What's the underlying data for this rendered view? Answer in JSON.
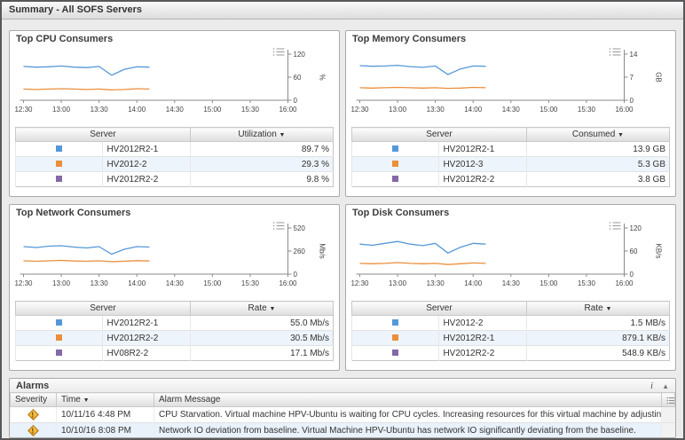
{
  "page_title": "Summary - All SOFS Servers",
  "icons": {
    "sort": "▼",
    "info": "i",
    "collapse": "▲",
    "chart_options": "menu-lines",
    "warning": "!"
  },
  "colors": {
    "series": [
      "#5598d8",
      "#ea8f3c",
      "#8468a8"
    ],
    "axis": "#8a8a8a",
    "warning_icon": "#ef9d1e"
  },
  "table_headers": {
    "server": "Server"
  },
  "panels": [
    {
      "title": "Top CPU Consumers",
      "value_header": "Utilization",
      "rows": [
        [
          "HV2012R2-1",
          "89.7 %"
        ],
        [
          "HV2012-2",
          "29.3 %"
        ],
        [
          "HV2012R2-2",
          "9.8 %"
        ]
      ]
    },
    {
      "title": "Top Memory Consumers",
      "value_header": "Consumed",
      "rows": [
        [
          "HV2012R2-1",
          "13.9 GB"
        ],
        [
          "HV2012-3",
          "5.3 GB"
        ],
        [
          "HV2012R2-2",
          "3.8 GB"
        ]
      ]
    },
    {
      "title": "Top Network Consumers",
      "value_header": "Rate",
      "rows": [
        [
          "HV2012R2-1",
          "55.0 Mb/s"
        ],
        [
          "HV2012R2-2",
          "30.5 Mb/s"
        ],
        [
          "HV08R2-2",
          "17.1 Mb/s"
        ]
      ]
    },
    {
      "title": "Top Disk Consumers",
      "value_header": "Rate",
      "rows": [
        [
          "HV2012-2",
          "1.5 MB/s"
        ],
        [
          "HV2012R2-1",
          "879.1 KB/s"
        ],
        [
          "HV2012R2-2",
          "548.9 KB/s"
        ]
      ]
    }
  ],
  "chart_data": [
    {
      "type": "line",
      "title": "Top CPU Consumers",
      "ylabel": "%",
      "ylim": [
        0,
        120
      ],
      "y_ticks": [
        0,
        60,
        120
      ],
      "x_ticks": [
        "12:30",
        "13:00",
        "13:30",
        "14:00",
        "14:30",
        "15:00",
        "15:30",
        "16:00"
      ],
      "x_minutes": [
        0,
        10,
        20,
        30,
        40,
        50,
        60,
        70,
        80,
        90,
        100
      ],
      "x_span": 210,
      "series": [
        {
          "name": "HV2012R2-1",
          "values": [
            88,
            86,
            87,
            89,
            86,
            85,
            88,
            65,
            80,
            87,
            86
          ]
        },
        {
          "name": "HV2012-2",
          "values": [
            29,
            28,
            29,
            30,
            29,
            28,
            29,
            27,
            28,
            30,
            29
          ]
        }
      ]
    },
    {
      "type": "line",
      "title": "Top Memory Consumers",
      "ylabel": "GB",
      "ylim": [
        0,
        14
      ],
      "y_ticks": [
        0,
        7,
        14
      ],
      "x_ticks": [
        "12:30",
        "13:00",
        "13:30",
        "14:00",
        "14:30",
        "15:00",
        "15:30",
        "16:00"
      ],
      "x_minutes": [
        0,
        10,
        20,
        30,
        40,
        50,
        60,
        70,
        80,
        90,
        100
      ],
      "x_span": 210,
      "series": [
        {
          "name": "HV2012R2-1",
          "values": [
            10.5,
            10.3,
            10.4,
            10.6,
            10.2,
            10.0,
            10.4,
            7.8,
            9.5,
            10.4,
            10.3
          ]
        },
        {
          "name": "HV2012-3",
          "values": [
            3.8,
            3.7,
            3.8,
            3.9,
            3.8,
            3.7,
            3.8,
            3.6,
            3.7,
            3.9,
            3.8
          ]
        }
      ]
    },
    {
      "type": "line",
      "title": "Top Network Consumers",
      "ylabel": "Mb/s",
      "ylim": [
        0,
        520
      ],
      "y_ticks": [
        0,
        260,
        520
      ],
      "x_ticks": [
        "12:30",
        "13:00",
        "13:30",
        "14:00",
        "14:30",
        "15:00",
        "15:30",
        "16:00"
      ],
      "x_minutes": [
        0,
        10,
        20,
        30,
        40,
        50,
        60,
        70,
        80,
        90,
        100
      ],
      "x_span": 210,
      "series": [
        {
          "name": "HV2012R2-1",
          "values": [
            310,
            300,
            315,
            320,
            305,
            295,
            310,
            225,
            280,
            310,
            305
          ]
        },
        {
          "name": "HV2012R2-2",
          "values": [
            150,
            145,
            150,
            155,
            148,
            145,
            150,
            140,
            145,
            152,
            148
          ]
        }
      ]
    },
    {
      "type": "line",
      "title": "Top Disk Consumers",
      "ylabel": "KB/s",
      "ylim": [
        0,
        120
      ],
      "y_ticks": [
        0,
        60,
        120
      ],
      "x_ticks": [
        "12:30",
        "13:00",
        "13:30",
        "14:00",
        "14:30",
        "15:00",
        "15:30",
        "16:00"
      ],
      "x_minutes": [
        0,
        10,
        20,
        30,
        40,
        50,
        60,
        70,
        80,
        90,
        100
      ],
      "x_span": 210,
      "series": [
        {
          "name": "HV2012-2",
          "values": [
            78,
            75,
            80,
            85,
            78,
            74,
            80,
            55,
            70,
            80,
            78
          ]
        },
        {
          "name": "HV2012R2-1",
          "values": [
            28,
            27,
            28,
            30,
            28,
            27,
            28,
            25,
            27,
            29,
            28
          ]
        }
      ]
    }
  ],
  "alarms": {
    "title": "Alarms",
    "columns": [
      "Severity",
      "Time",
      "Alarm Message"
    ],
    "rows": [
      {
        "severity": "warning",
        "time": "10/11/16 4:48 PM",
        "message": "CPU Starvation. Virtual machine HPV-Ubuntu is waiting for CPU cycles. Increasing resources for this virtual machine by adjusting t"
      },
      {
        "severity": "warning",
        "time": "10/10/16 8:08 PM",
        "message": "Network IO deviation from baseline. Virtual Machine HPV-Ubuntu has network IO significantly deviating from the baseline."
      }
    ]
  }
}
